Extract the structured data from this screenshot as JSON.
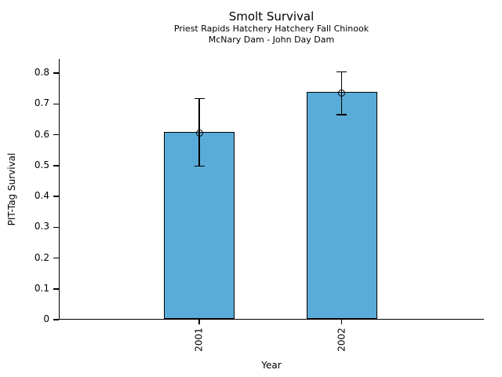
{
  "chart_data": {
    "type": "bar",
    "title": "Smolt Survival",
    "subtitle1": "Priest Rapids Hatchery Hatchery Fall Chinook",
    "subtitle2": "McNary Dam - John Day Dam",
    "xlabel": "Year",
    "ylabel": "PIT-Tag Survival",
    "categories": [
      "2001",
      "2002"
    ],
    "values": [
      0.606,
      0.736
    ],
    "error_low": [
      0.498,
      0.665
    ],
    "error_high": [
      0.717,
      0.804
    ],
    "yticks": [
      0,
      0.1,
      0.2,
      0.3,
      0.4,
      0.5,
      0.6,
      0.7,
      0.8
    ],
    "ytick_labels": [
      "0",
      "0.1",
      "0.2",
      "0.3",
      "0.4",
      "0.5",
      "0.6",
      "0.7",
      "0.8"
    ],
    "ylim": [
      0,
      0.846
    ],
    "grid": false,
    "legend": false,
    "bar_color": "#5AACD8",
    "bar_edge_color": "#000000",
    "axis_color": "#000000",
    "text_color": "#000000"
  }
}
